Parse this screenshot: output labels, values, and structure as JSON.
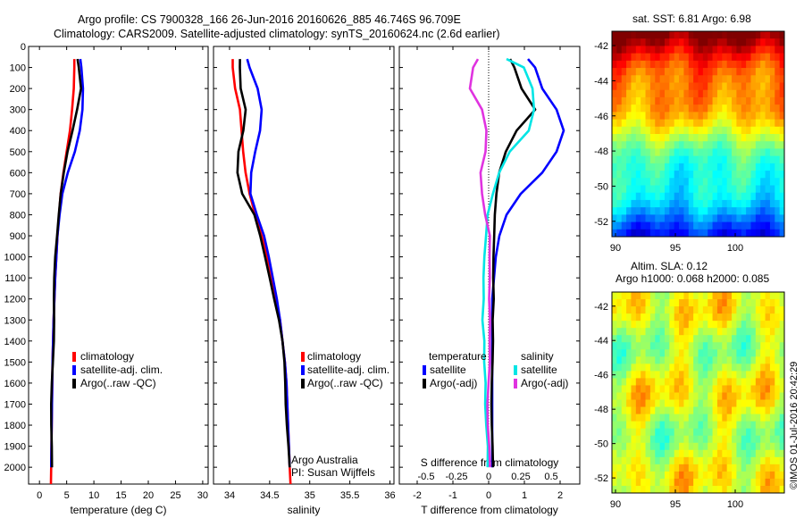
{
  "header": {
    "line1": "Argo profile: CS 7900328_166 26-Jun-2016 20160626_885 46.746S 96.709E",
    "line2": "Climatology: CARS2009. Satellite-adjusted climatology: synTS_20160624.nc (2.6d earlier)"
  },
  "colors": {
    "climatology": "#ff0000",
    "satellite": "#0000ff",
    "argo": "#000000",
    "sat_salinity": "#00e5e5",
    "argo_salinity": "#e033e0"
  },
  "legend": {
    "climatology": "climatology",
    "satellite_adj": "satellite-adj. clim.",
    "argo_raw": "Argo(..raw -QC)",
    "temperature_head": "temperature",
    "salinity_head": "salinity",
    "satellite": "satellite",
    "argo_adj": "Argo(-adj)"
  },
  "credits": {
    "org": "Argo Australia",
    "pi": "PI: Susan Wijffels",
    "imos": "©IMOS 01-Jul-2016 20:42:29"
  },
  "maps": {
    "sst_title": "sat. SST: 6.81  Argo: 6.98",
    "sla_title1": "Altim. SLA: 0.12",
    "sla_title2": "Argo h1000: 0.068  h2000: 0.085",
    "lat_ticks": [
      "-42",
      "-44",
      "-46",
      "-48",
      "-50",
      "-52"
    ],
    "lon_ticks": [
      "90",
      "95",
      "100"
    ],
    "colormap": "jet"
  },
  "chart_data": [
    {
      "type": "line",
      "xlabel": "temperature (deg C)",
      "ylabel": "",
      "xlim": [
        -2,
        31
      ],
      "ylim": [
        2080,
        0
      ],
      "xticks": [
        0,
        5,
        10,
        15,
        20,
        25,
        30
      ],
      "yticks": [
        0,
        100,
        200,
        300,
        400,
        500,
        600,
        700,
        800,
        900,
        1000,
        1100,
        1200,
        1300,
        1400,
        1500,
        1600,
        1700,
        1800,
        1900,
        2000
      ],
      "series": [
        {
          "name": "climatology",
          "color": "#ff0000",
          "x": [
            6.4,
            6.4,
            6.3,
            6.0,
            5.6,
            5.0,
            4.4,
            3.9,
            3.6,
            3.3,
            3.1,
            2.9,
            2.75,
            2.6,
            2.5,
            2.4,
            2.35,
            2.3,
            2.25,
            2.2,
            2.15,
            2.1
          ],
          "y": [
            60,
            100,
            200,
            300,
            400,
            500,
            600,
            700,
            800,
            900,
            1000,
            1100,
            1200,
            1300,
            1400,
            1500,
            1600,
            1700,
            1800,
            1900,
            2000,
            2080
          ]
        },
        {
          "name": "satellite-adj. clim.",
          "color": "#0000ff",
          "x": [
            7.5,
            7.7,
            8.0,
            7.9,
            7.4,
            6.5,
            5.2,
            4.2,
            3.7,
            3.3,
            3.1,
            2.9,
            2.75,
            2.6,
            2.5,
            2.4,
            2.35,
            2.3,
            2.25,
            2.2,
            2.15
          ],
          "y": [
            60,
            100,
            200,
            300,
            400,
            500,
            600,
            700,
            800,
            900,
            1000,
            1100,
            1200,
            1300,
            1400,
            1500,
            1600,
            1700,
            1800,
            1900,
            2000
          ]
        },
        {
          "name": "Argo(..raw -QC)",
          "color": "#000000",
          "x": [
            7.0,
            7.1,
            7.5,
            6.9,
            6.2,
            5.3,
            4.5,
            3.8,
            3.4,
            3.2,
            3.0,
            2.85,
            2.7,
            2.6,
            2.5,
            2.4,
            2.35,
            2.3,
            2.25,
            2.2,
            2.15
          ],
          "y": [
            60,
            100,
            200,
            300,
            400,
            500,
            600,
            700,
            800,
            900,
            1000,
            1100,
            1200,
            1300,
            1400,
            1500,
            1600,
            1700,
            1800,
            1900,
            2000
          ]
        }
      ]
    },
    {
      "type": "line",
      "xlabel": "salinity",
      "ylabel": "",
      "xlim": [
        33.8,
        36.05
      ],
      "ylim": [
        2080,
        0
      ],
      "xticks": [
        34,
        34.5,
        35,
        35.5,
        36
      ],
      "series": [
        {
          "name": "climatology",
          "color": "#ff0000",
          "x": [
            34.04,
            34.04,
            34.07,
            34.13,
            34.15,
            34.17,
            34.2,
            34.25,
            34.32,
            34.4,
            34.47,
            34.53,
            34.58,
            34.63,
            34.66,
            34.69,
            34.71,
            34.72,
            34.73,
            34.74,
            34.75,
            34.76
          ],
          "y": [
            60,
            100,
            200,
            300,
            400,
            500,
            600,
            700,
            800,
            900,
            1000,
            1100,
            1200,
            1300,
            1400,
            1500,
            1600,
            1700,
            1800,
            1900,
            2000,
            2080
          ]
        },
        {
          "name": "satellite-adj. clim.",
          "color": "#0000ff",
          "x": [
            34.22,
            34.25,
            34.35,
            34.4,
            34.38,
            34.32,
            34.27,
            34.26,
            34.34,
            34.43,
            34.49,
            34.54,
            34.59,
            34.63,
            34.66,
            34.69,
            34.71,
            34.72,
            34.73,
            34.74,
            34.75
          ],
          "y": [
            60,
            100,
            200,
            300,
            400,
            500,
            600,
            700,
            800,
            900,
            1000,
            1100,
            1200,
            1300,
            1400,
            1500,
            1600,
            1700,
            1800,
            1900,
            2000
          ]
        },
        {
          "name": "Argo(..raw -QC)",
          "color": "#000000",
          "x": [
            34.13,
            34.12,
            34.13,
            34.2,
            34.18,
            34.12,
            34.1,
            34.15,
            34.3,
            34.38,
            34.45,
            34.51,
            34.56,
            34.61,
            34.65,
            34.68,
            34.7,
            34.71,
            34.72,
            34.73,
            34.74
          ],
          "y": [
            60,
            100,
            200,
            300,
            400,
            500,
            600,
            700,
            800,
            900,
            1000,
            1100,
            1200,
            1300,
            1400,
            1500,
            1600,
            1700,
            1800,
            1900,
            2000
          ]
        }
      ]
    },
    {
      "type": "line",
      "xlabel": "T difference from climatology",
      "x2label": "S difference from climatology",
      "ylabel": "",
      "xlim": [
        -2.5,
        2.55
      ],
      "ylim": [
        2080,
        0
      ],
      "xticks": [
        -2,
        -1,
        0,
        1,
        2
      ],
      "x2ticks": [
        "-0.5",
        "-0.25",
        "0",
        "0.25",
        "0.5"
      ],
      "series": [
        {
          "name": "temperature satellite",
          "color": "#0000ff",
          "x": [
            1.1,
            1.3,
            1.5,
            1.9,
            2.1,
            1.9,
            1.5,
            0.9,
            0.5,
            0.3,
            0.2,
            0.15,
            0.1,
            0.1,
            0.1,
            0.1,
            0.1,
            0.1,
            0.1,
            0.1,
            0.1
          ],
          "y": [
            60,
            100,
            200,
            300,
            400,
            500,
            600,
            700,
            800,
            900,
            1000,
            1100,
            1200,
            1300,
            1400,
            1500,
            1600,
            1700,
            1800,
            1900,
            2000
          ]
        },
        {
          "name": "temperature Argo(-adj)",
          "color": "#000000",
          "x": [
            0.6,
            0.7,
            0.9,
            1.3,
            0.8,
            0.5,
            0.3,
            0.2,
            0.15,
            0.15,
            0.15,
            0.15,
            0.15,
            0.1,
            0.1,
            0.1,
            0.1,
            0.1,
            0.1,
            0.1,
            0.1
          ],
          "y": [
            60,
            100,
            200,
            300,
            400,
            500,
            600,
            700,
            800,
            900,
            1000,
            1100,
            1200,
            1300,
            1400,
            1500,
            1600,
            1700,
            1800,
            1900,
            2000
          ]
        },
        {
          "name": "salinity satellite",
          "color": "#00e5e5",
          "x": [
            0.5,
            1.0,
            1.2,
            1.3,
            1.1,
            0.6,
            0.3,
            0.1,
            0.0,
            -0.1,
            -0.1,
            -0.15,
            -0.15,
            -0.15,
            -0.15,
            -0.1,
            -0.1,
            -0.1,
            -0.05,
            -0.05,
            0.0
          ],
          "y": [
            60,
            100,
            200,
            300,
            400,
            500,
            600,
            700,
            800,
            900,
            1000,
            1100,
            1200,
            1300,
            1400,
            1500,
            1600,
            1700,
            1800,
            1900,
            2000
          ]
        },
        {
          "name": "salinity Argo(-adj)",
          "color": "#e033e0",
          "x": [
            -0.3,
            -0.4,
            -0.5,
            -0.2,
            -0.1,
            -0.1,
            -0.2,
            -0.15,
            -0.1,
            0.0,
            0.0,
            0.05,
            0.05,
            0.05,
            0.0,
            0.0,
            0.0,
            0.0,
            0.0,
            0.0,
            0.0
          ],
          "y": [
            60,
            100,
            200,
            300,
            400,
            500,
            600,
            700,
            800,
            900,
            1000,
            1100,
            1200,
            1300,
            1400,
            1500,
            1600,
            1700,
            1800,
            1900,
            2000
          ]
        }
      ]
    }
  ]
}
